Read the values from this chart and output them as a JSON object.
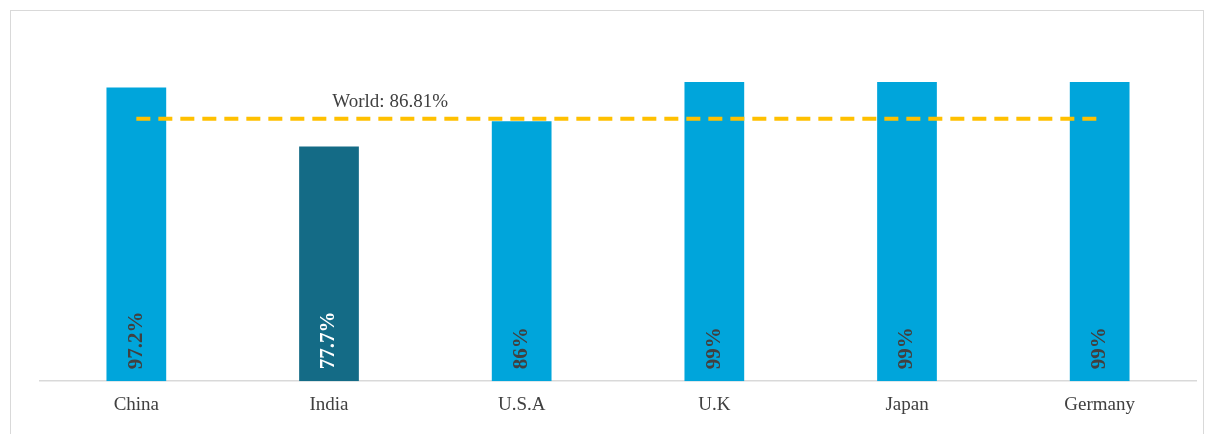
{
  "chart_data": {
    "type": "bar",
    "categories": [
      "China",
      "India",
      "U.S.A",
      "U.K",
      "Japan",
      "Germany"
    ],
    "values": [
      97.2,
      77.7,
      86,
      99,
      99,
      99
    ],
    "colors": [
      "#00a5db",
      "#146b86",
      "#00a5db",
      "#00a5db",
      "#00a5db",
      "#00a5db"
    ],
    "value_labels": [
      "97.2%",
      "77.7%",
      "86%",
      "99%",
      "99%",
      "99%"
    ],
    "ylim": [
      0,
      100
    ],
    "tick_labels": "x",
    "grid": false,
    "legend": false,
    "ref_lines": [
      {
        "axis": "y",
        "value": 86.81,
        "label": "World: 86.81%",
        "color": "#ffc000",
        "line_style": "dashed"
      }
    ]
  }
}
